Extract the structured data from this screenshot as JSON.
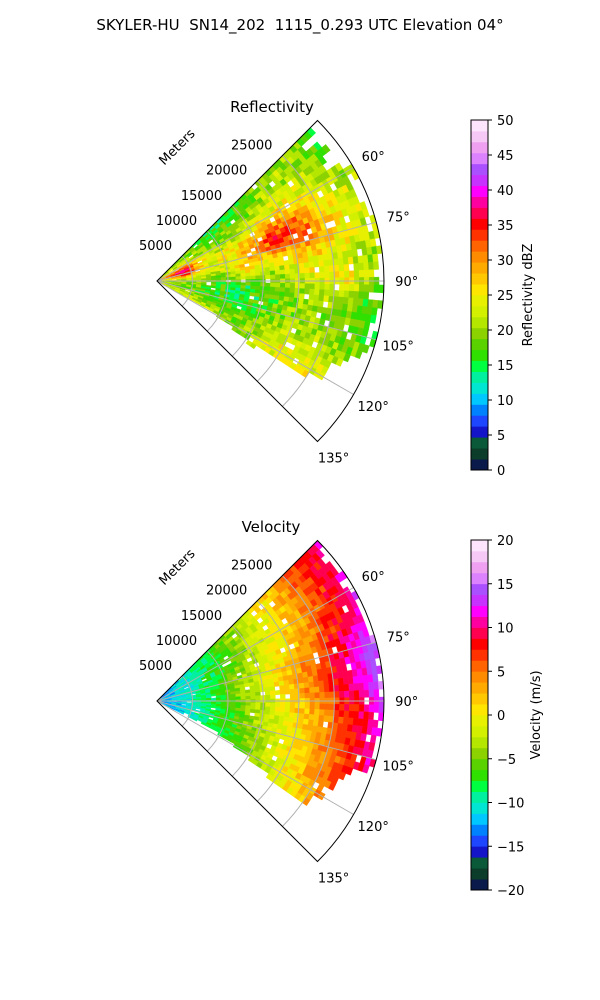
{
  "figure": {
    "title": "SKYLER-HU  SN14_202  1115_0.293 UTC Elevation 04°"
  },
  "chart_data": [
    {
      "type": "heatmap",
      "subtype": "polar-sector (PPI radar)",
      "title": "Reflectivity",
      "radial_axis_label": "Meters",
      "radial_ticks": [
        5000,
        10000,
        15000,
        20000,
        25000
      ],
      "radial_tick_labels": [
        "5000",
        "10000",
        "15000",
        "20000",
        "25000"
      ],
      "r_range": [
        0,
        32000
      ],
      "azimuth_range_deg": [
        45,
        135
      ],
      "azimuth_ticks_deg": [
        60,
        75,
        90,
        105,
        120,
        135
      ],
      "azimuth_tick_labels": [
        "60°",
        "75°",
        "90°",
        "105°",
        "120°",
        "135°"
      ],
      "grid": true,
      "field": "reflectivity",
      "description_values": {
        "near_range_core_dbz": 35,
        "mid_range_band_dbz": 30,
        "typical_dbz": 22,
        "southern_edge_dbz": 13
      },
      "colorbar": {
        "label": "Reflectivity dBZ",
        "range": [
          0,
          50
        ],
        "ticks": [
          0,
          5,
          10,
          15,
          20,
          25,
          30,
          35,
          40,
          45,
          50
        ],
        "tick_labels": [
          "0",
          "5",
          "10",
          "15",
          "20",
          "25",
          "30",
          "35",
          "40",
          "45",
          "50"
        ]
      }
    },
    {
      "type": "heatmap",
      "subtype": "polar-sector (PPI radar)",
      "title": "Velocity",
      "radial_axis_label": "Meters",
      "radial_ticks": [
        5000,
        10000,
        15000,
        20000,
        25000
      ],
      "radial_tick_labels": [
        "5000",
        "10000",
        "15000",
        "20000",
        "25000"
      ],
      "r_range": [
        0,
        32000
      ],
      "azimuth_range_deg": [
        45,
        135
      ],
      "azimuth_ticks_deg": [
        60,
        75,
        90,
        105,
        120,
        135
      ],
      "azimuth_tick_labels": [
        "60°",
        "75°",
        "90°",
        "105°",
        "120°",
        "135°"
      ],
      "grid": true,
      "field": "velocity",
      "description_values": {
        "near_range_ms": -12,
        "mid_range_ms": -4,
        "far_north_ms": 10,
        "far_east_ms": 13,
        "far_south_ms": 5
      },
      "colorbar": {
        "label": "Velocity (m/s)",
        "range": [
          -20,
          20
        ],
        "ticks": [
          -20,
          -15,
          -10,
          -5,
          0,
          5,
          10,
          15,
          20
        ],
        "tick_labels": [
          "−20",
          "−15",
          "−10",
          "−5",
          "0",
          "5",
          "10",
          "15",
          "20"
        ]
      }
    }
  ],
  "palette": [
    "#0a1a4a",
    "#0b3d2a",
    "#0a5a3a",
    "#1414c8",
    "#1e46ff",
    "#0082ff",
    "#00c8ff",
    "#00e6d2",
    "#00f0a0",
    "#00ff40",
    "#30e000",
    "#5ad200",
    "#8cd200",
    "#b4e600",
    "#d2f000",
    "#e6f000",
    "#ffe600",
    "#ffc800",
    "#ffaa00",
    "#ff8c00",
    "#ff6400",
    "#ff3200",
    "#ff0000",
    "#ff0050",
    "#ff00a0",
    "#ff00ff",
    "#c832ff",
    "#aa50ff",
    "#dc82ff",
    "#f0a0f0",
    "#f5c8f5",
    "#fde6fd"
  ]
}
